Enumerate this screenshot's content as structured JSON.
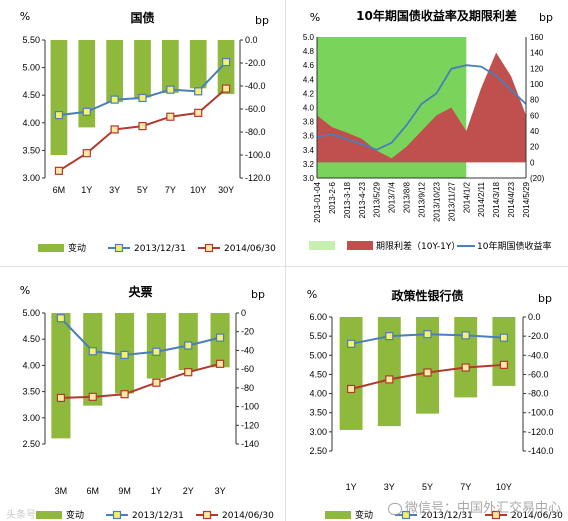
{
  "colors": {
    "bar_green": "#8fb93c",
    "blue_line": "#4a7fb8",
    "red_line": "#b03a2e",
    "marker_yellow": "#f6f06a",
    "area_green": "#7ad35a",
    "area_red": "#c0504d",
    "marker_red": "#fde9a5"
  },
  "watermark": "微信号：中国外汇交易中心",
  "watermark_small": "头条号",
  "chart_data": [
    {
      "id": "govt",
      "type": "bar",
      "title": "国债",
      "left_unit": "%",
      "right_unit": "bp",
      "categories": [
        "6M",
        "1Y",
        "3Y",
        "5Y",
        "7Y",
        "10Y",
        "30Y"
      ],
      "ylim_left": [
        3.0,
        5.5
      ],
      "left_ticks": [
        "5.50",
        "5.00",
        "4.50",
        "4.00",
        "3.50",
        "3.00"
      ],
      "ylim_right": [
        -120,
        0
      ],
      "right_ticks": [
        "0.0",
        "-20.0",
        "-40.0",
        "-60.0",
        "-80.0",
        "-100.0",
        "-120.0"
      ],
      "series": [
        {
          "name": "变动",
          "kind": "bar",
          "axis": "right",
          "values": [
            -100,
            -76,
            -54,
            -50,
            -46,
            -42,
            -47
          ]
        },
        {
          "name": "2013/12/31",
          "kind": "line",
          "axis": "left",
          "values": [
            4.14,
            4.2,
            4.42,
            4.45,
            4.6,
            4.57,
            5.1
          ]
        },
        {
          "name": "2014/06/30",
          "kind": "line",
          "axis": "left",
          "values": [
            3.13,
            3.45,
            3.88,
            3.94,
            4.11,
            4.18,
            4.62
          ]
        }
      ],
      "legend": [
        "变动",
        "2013/12/31",
        "2014/06/30"
      ]
    },
    {
      "id": "spread10y",
      "type": "area",
      "title": "10年期国债收益率及期限利差",
      "left_unit": "%",
      "right_unit": "bp",
      "x_labels": [
        "2013-01-04",
        "2013-2-6",
        "2013-3-18",
        "2013-4-23",
        "2013/5/29",
        "2013/7/4",
        "2013/8/8",
        "2013/9/12",
        "2013/10/23",
        "2013/11/27",
        "2014/1/2",
        "2014/2/11",
        "2014/3/18",
        "2014/4/23",
        "2014/5/29"
      ],
      "ylim_left": [
        3.0,
        5.0
      ],
      "left_ticks": [
        "5.0",
        "4.8",
        "4.6",
        "4.4",
        "4.2",
        "4.0",
        "3.8",
        "3.6",
        "3.4",
        "3.2",
        "3.0"
      ],
      "ylim_right": [
        -20,
        160
      ],
      "right_ticks": [
        "160",
        "140",
        "120",
        "100",
        "80",
        "60",
        "40",
        "20",
        "0",
        "(20)"
      ],
      "shade_range": [
        "2013-01-04",
        "2014/1/2"
      ],
      "series": [
        {
          "name": "期限利差（10Y-1Y）",
          "kind": "area",
          "axis": "right",
          "x": [
            "2013-01-04",
            "2013-2-6",
            "2013-3-18",
            "2013-4-23",
            "2013/5/29",
            "2013/7/4",
            "2013/8/8",
            "2013/9/12",
            "2013/10/23",
            "2013/11/27",
            "2014/1/2",
            "2014/2/11",
            "2014/3/18",
            "2014/4/23",
            "2014/5/29"
          ],
          "values": [
            60,
            45,
            38,
            30,
            15,
            5,
            20,
            40,
            60,
            70,
            40,
            95,
            140,
            110,
            60
          ]
        },
        {
          "name": "10年期国债收益率",
          "kind": "line",
          "axis": "left",
          "x": [
            "2013-01-04",
            "2013-2-6",
            "2013-3-18",
            "2013-4-23",
            "2013/5/29",
            "2013/7/4",
            "2013/8/8",
            "2013/9/12",
            "2013/10/23",
            "2013/11/27",
            "2014/1/2",
            "2014/2/11",
            "2014/3/18",
            "2014/4/23",
            "2014/5/29"
          ],
          "values": [
            3.58,
            3.62,
            3.55,
            3.48,
            3.4,
            3.5,
            3.75,
            4.05,
            4.2,
            4.55,
            4.6,
            4.58,
            4.45,
            4.25,
            4.05
          ]
        }
      ],
      "legend": [
        "期限利差（10Y-1Y）",
        "10年期国债收益率"
      ]
    },
    {
      "id": "cbill",
      "type": "bar",
      "title": "央票",
      "left_unit": "%",
      "right_unit": "bp",
      "categories": [
        "3M",
        "6M",
        "9M",
        "1Y",
        "2Y",
        "3Y"
      ],
      "ylim_left": [
        2.5,
        5.0
      ],
      "left_ticks": [
        "5.00",
        "4.50",
        "4.00",
        "3.50",
        "3.00",
        "2.50"
      ],
      "ylim_right": [
        -140,
        0
      ],
      "right_ticks": [
        "0",
        "-20",
        "-40",
        "-60",
        "-80",
        "-100",
        "-120",
        "-140"
      ],
      "series": [
        {
          "name": "变动",
          "kind": "bar",
          "axis": "right",
          "values": [
            -134,
            -99,
            -86,
            -70,
            -61,
            -58
          ]
        },
        {
          "name": "2013/12/31",
          "kind": "line",
          "axis": "left",
          "values": [
            4.9,
            4.27,
            4.2,
            4.26,
            4.38,
            4.53
          ]
        },
        {
          "name": "2014/06/30",
          "kind": "line",
          "axis": "left",
          "values": [
            3.38,
            3.4,
            3.45,
            3.67,
            3.87,
            4.03
          ]
        }
      ],
      "legend": [
        "变动",
        "2013/12/31",
        "2014/06/30"
      ]
    },
    {
      "id": "policy",
      "type": "bar",
      "title": "政策性银行债",
      "left_unit": "%",
      "right_unit": "bp",
      "categories": [
        "1Y",
        "3Y",
        "5Y",
        "7Y",
        "10Y"
      ],
      "ylim_left": [
        2.5,
        6.0
      ],
      "left_ticks": [
        "6.00",
        "5.50",
        "5.00",
        "4.50",
        "4.00",
        "3.50",
        "3.00",
        "2.50"
      ],
      "ylim_right": [
        -140,
        0
      ],
      "right_ticks": [
        "0.0",
        "-20.0",
        "-40.0",
        "-60.0",
        "-80.0",
        "-100.0",
        "-120.0",
        "-140.0"
      ],
      "series": [
        {
          "name": "变动",
          "kind": "bar",
          "axis": "right",
          "values": [
            -118,
            -114,
            -101,
            -84,
            -72
          ]
        },
        {
          "name": "2013/12/31",
          "kind": "line",
          "axis": "left",
          "values": [
            5.3,
            5.5,
            5.55,
            5.52,
            5.46
          ]
        },
        {
          "name": "2014/06/30",
          "kind": "line",
          "axis": "left",
          "values": [
            4.12,
            4.37,
            4.55,
            4.68,
            4.75
          ]
        }
      ],
      "legend": [
        "变动",
        "2013/12/31",
        "2014/06/30"
      ]
    }
  ]
}
